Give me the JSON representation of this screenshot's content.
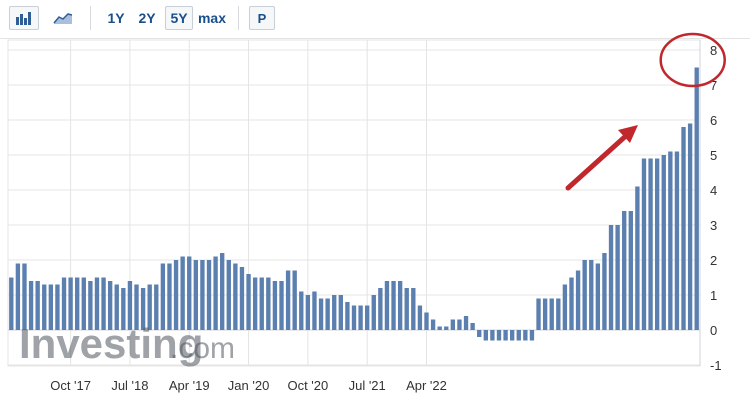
{
  "toolbar": {
    "bar_icon": "bar-chart-icon",
    "area_icon": "area-chart-icon",
    "range_buttons": [
      "1Y",
      "2Y",
      "5Y",
      "max"
    ],
    "selected_range": "5Y",
    "p_button": "P"
  },
  "watermark": {
    "brand": "Investing",
    "suffix": ".com"
  },
  "colors": {
    "bar": "#5b7faf",
    "bar_faded": "#a7bad6",
    "annotation": "#c0282d",
    "grid": "#e4e4e4",
    "axis_text": "#333333"
  },
  "chart_data": {
    "type": "bar",
    "ylim": [
      -1,
      8
    ],
    "y_ticks": [
      -1,
      0,
      1,
      2,
      3,
      4,
      5,
      6,
      7,
      8
    ],
    "x_tick_labels": [
      "Oct '17",
      "Jul '18",
      "Apr '19",
      "Jan '20",
      "Oct '20",
      "Jul '21",
      "Apr '22"
    ],
    "x_tick_indices": [
      9,
      18,
      27,
      36,
      45,
      54,
      63
    ],
    "grid": true,
    "values": [
      1.5,
      1.9,
      1.9,
      1.4,
      1.4,
      1.3,
      1.3,
      1.3,
      1.5,
      1.5,
      1.5,
      1.5,
      1.4,
      1.5,
      1.5,
      1.4,
      1.3,
      1.2,
      1.4,
      1.3,
      1.2,
      1.3,
      1.3,
      1.9,
      1.9,
      2.0,
      2.1,
      2.1,
      2.0,
      2.0,
      2.0,
      2.1,
      2.2,
      2.0,
      1.9,
      1.8,
      1.6,
      1.5,
      1.5,
      1.5,
      1.4,
      1.4,
      1.7,
      1.7,
      1.1,
      1.0,
      1.1,
      0.9,
      0.9,
      1.0,
      1.0,
      0.8,
      0.7,
      0.7,
      0.7,
      1.0,
      1.2,
      1.4,
      1.4,
      1.4,
      1.2,
      1.2,
      0.7,
      0.5,
      0.3,
      0.1,
      0.1,
      0.3,
      0.3,
      0.4,
      0.2,
      -0.2,
      -0.3,
      -0.3,
      -0.3,
      -0.3,
      -0.3,
      -0.3,
      -0.3,
      -0.3,
      0.9,
      0.9,
      0.9,
      0.9,
      1.3,
      1.5,
      1.7,
      2.0,
      2.0,
      1.9,
      2.2,
      3.0,
      3.0,
      3.4,
      3.4,
      4.1,
      4.9,
      4.9,
      4.9,
      5.0,
      5.1,
      5.1,
      5.8,
      5.9,
      7.5
    ],
    "annotations": [
      {
        "type": "arrow",
        "direction": "up-right",
        "color": "#c0282d"
      },
      {
        "type": "circle",
        "target": "last-bar",
        "color": "#c0282d"
      }
    ]
  }
}
